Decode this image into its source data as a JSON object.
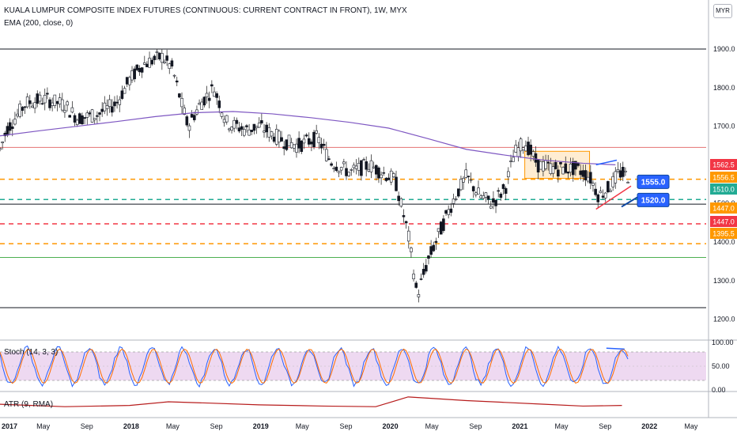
{
  "header": {
    "title": "KUALA LUMPUR COMPOSITE INDEX FUTURES (CONTINUOUS: CURRENT CONTRACT IN FRONT), 1W, MYX",
    "indicator": "EMA (200, close, 0)",
    "currency": "MYR"
  },
  "colors": {
    "up": "#26a69a",
    "down": "#ef5350",
    "ema": "#7e57c2",
    "resistance_line": "#e57373",
    "support_line_green": "#4caf50",
    "orange_dash": "#ff9800",
    "red_dash": "#f23645",
    "green_dash": "#22ab94",
    "callout_blue": "#2962ff",
    "stoch_band": "#e1bee7",
    "stoch_k": "#2962ff",
    "stoch_d": "#ff6d00",
    "atr": "#b71c1c"
  },
  "chart_data": [
    {
      "type": "candlestick",
      "title": "KUALA LUMPUR COMPOSITE INDEX FUTURES (CONTINUOUS: CURRENT CONTRACT IN FRONT), 1W, MYX",
      "y_ticks": [
        "1900.0",
        "1800.0",
        "1700.0",
        "1600.0",
        "1500.0",
        "1400.0",
        "1300.0",
        "1200.0"
      ],
      "ylim": [
        1150,
        1945
      ],
      "x_ticks": [
        "2017",
        "May",
        "Sep",
        "2018",
        "May",
        "Sep",
        "2019",
        "May",
        "Sep",
        "2020",
        "May",
        "Sep",
        "2021",
        "May",
        "Sep",
        "2022",
        "May"
      ],
      "x_range_years": [
        2017.0,
        2022.45
      ],
      "series": [
        {
          "name": "EMA (200, close, 0)",
          "type": "line",
          "x": [
            2017.0,
            2017.3,
            2017.6,
            2017.9,
            2018.2,
            2018.5,
            2018.8,
            2019.1,
            2019.4,
            2019.7,
            2020.0,
            2020.3,
            2020.6,
            2020.9,
            2021.2,
            2021.5,
            2021.75
          ],
          "y": [
            1675,
            1688,
            1700,
            1712,
            1725,
            1735,
            1738,
            1732,
            1722,
            1710,
            1695,
            1668,
            1640,
            1625,
            1612,
            1604,
            1600
          ]
        }
      ],
      "horizontal_levels": [
        {
          "value": 1900,
          "style": "solid",
          "color": "#131722"
        },
        {
          "value": 1645,
          "style": "solid",
          "color": "#e57373"
        },
        {
          "value": 1562.5,
          "style": "dashed",
          "color": "#ff9800"
        },
        {
          "value": 1510,
          "style": "dashed",
          "color": "#22ab94"
        },
        {
          "value": 1498,
          "style": "solid",
          "color": "#131722"
        },
        {
          "value": 1447,
          "style": "dashed",
          "color": "#f23645"
        },
        {
          "value": 1395.5,
          "style": "dashed",
          "color": "#ff9800"
        },
        {
          "value": 1360,
          "style": "solid",
          "color": "#4caf50"
        },
        {
          "value": 1230,
          "style": "solid",
          "color": "#131722"
        }
      ],
      "price_tags": [
        {
          "text": "1562.5",
          "value": 1562.5,
          "color": "#f23645"
        },
        {
          "text": "1556.5",
          "value": 1556.5,
          "color": "#ff9800"
        },
        {
          "text": "1510.0",
          "value": 1510.0,
          "color": "#22ab94"
        },
        {
          "text": "1447.0",
          "value": 1447.0,
          "color": "#ff9800"
        },
        {
          "text": "1447.0",
          "value": 1447.0,
          "color": "#f23645"
        },
        {
          "text": "1395.5",
          "value": 1395.5,
          "color": "#ff9800"
        }
      ],
      "callouts": [
        {
          "text": "1555.0",
          "value": 1555.0
        },
        {
          "text": "1520.0",
          "value": 1520.0
        }
      ],
      "consolidation_box": {
        "x_start": 2021.05,
        "x_end": 2021.55,
        "y_low": 1565,
        "y_high": 1635
      }
    },
    {
      "type": "line",
      "title": "Stoch (14, 3, 3)",
      "y_ticks": [
        "100.00",
        "50.00",
        "0.00"
      ],
      "ylim": [
        0,
        100
      ],
      "band": [
        20,
        80
      ]
    },
    {
      "type": "line",
      "title": "ATR (9, RMA)",
      "x": [
        2017.0,
        2017.5,
        2018.0,
        2018.3,
        2018.6,
        2019.0,
        2019.5,
        2019.9,
        2020.15,
        2020.3,
        2020.6,
        2020.9,
        2021.2,
        2021.5,
        2021.8
      ],
      "y": [
        18,
        14,
        16,
        22,
        20,
        17,
        15,
        14,
        30,
        28,
        24,
        21,
        18,
        15,
        16
      ]
    }
  ],
  "panels": {
    "stoch_label": "Stoch (14, 3, 3)",
    "atr_label": "ATR (9, RMA)"
  }
}
